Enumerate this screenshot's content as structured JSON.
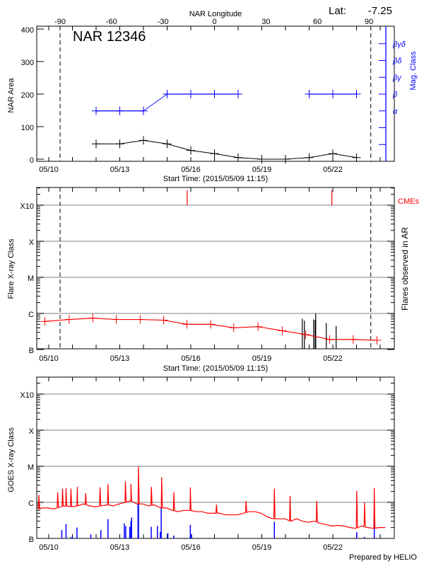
{
  "chart_data": [
    {
      "type": "line",
      "title": "NAR 12346",
      "latitude_label": "Lat:",
      "latitude_value": "-7.25",
      "top_axis_label": "NAR Longitude",
      "top_ticks": [
        "-90",
        "-60",
        "-30",
        "0",
        "30",
        "60",
        "90"
      ],
      "top_tick_values": [
        -90,
        -60,
        -30,
        0,
        30,
        60,
        90
      ],
      "limb_dates": [
        "2015-05-10T11:30",
        "2015-05-23T14:30"
      ],
      "xlabel": "Start Time: (2015/05/09 11:15)",
      "x_ticks": [
        "05/10",
        "05/13",
        "05/16",
        "05/19",
        "05/22"
      ],
      "xlim": [
        "2015-05-09T11:15",
        "2015-05-24T02:00"
      ],
      "ylabel": "NAR Area",
      "ylim": [
        0,
        400
      ],
      "y_ticks": [
        "0",
        "100",
        "200",
        "300",
        "400"
      ],
      "y2label": "Mag. Class",
      "y2_ticks": [
        "α",
        "β",
        "βγ",
        "βδ",
        "βγδ"
      ],
      "colors": {
        "area": "#000000",
        "mag_class": "#0000ff"
      },
      "area_series": {
        "dates": [
          "2015-05-12",
          "2015-05-13",
          "2015-05-14",
          "2015-05-15",
          "2015-05-16",
          "2015-05-17",
          "2015-05-18",
          "2015-05-19",
          "2015-05-20",
          "2015-05-21",
          "2015-05-22",
          "2015-05-23"
        ],
        "values": [
          47,
          47,
          58,
          47,
          27,
          17,
          5,
          0,
          0,
          5,
          17,
          5
        ]
      },
      "mag_class_series": {
        "dates": [
          "2015-05-12",
          "2015-05-13",
          "2015-05-14",
          "2015-05-15",
          "2015-05-16",
          "2015-05-17",
          "2015-05-18",
          "2015-05-21",
          "2015-05-22",
          "2015-05-23"
        ],
        "values": [
          "α",
          "α",
          "α",
          "β",
          "β",
          "β",
          "β",
          "β",
          "β",
          "β"
        ]
      }
    },
    {
      "type": "line",
      "xlabel": "Start Time: (2015/05/09 11:15)",
      "x_ticks": [
        "05/10",
        "05/13",
        "05/16",
        "05/19",
        "05/22"
      ],
      "ylabel": "Flare X-ray Class",
      "y2label": "Flares observed in AR",
      "cme_label": "CMEs",
      "y_ticks": [
        "B",
        "C",
        "M",
        "X",
        "X10"
      ],
      "y_scale": "log",
      "ylim_flux": [
        1e-07,
        0.0032
      ],
      "colors": {
        "background_flux": "#ff0000",
        "flares": "#000000",
        "cmes": "#ff0000",
        "grid": "#999999"
      },
      "background_flux": {
        "dates": [
          "2015-05-09T20:00",
          "2015-05-10T20:40",
          "2015-05-11T20:40",
          "2015-05-12T20:30",
          "2015-05-13T20:40",
          "2015-05-14T20:30",
          "2015-05-15T20:00",
          "2015-05-16T20:10",
          "2015-05-17T19:30",
          "2015-05-18T20:10",
          "2015-05-19T20:50",
          "2015-05-20T20:25",
          "2015-05-21T20:40",
          "2015-05-22T20:40",
          "2015-05-23T20:40"
        ],
        "flux": [
          6e-07,
          6.8e-07,
          7.4e-07,
          6.8e-07,
          6.8e-07,
          6.5e-07,
          5e-07,
          5e-07,
          4e-07,
          4.3e-07,
          3.3e-07,
          2.6e-07,
          1.9e-07,
          1.9e-07,
          1.8e-07
        ]
      },
      "flares": {
        "dates": [
          "2015-05-20T17:00",
          "2015-05-20T19:10",
          "2015-05-21T04:30",
          "2015-05-21T06:00",
          "2015-05-21T06:40",
          "2015-05-21T17:20",
          "2015-05-22T03:20"
        ],
        "flux": [
          7.1e-07,
          6.3e-07,
          6.8e-07,
          6.5e-07,
          1e-06,
          5.4e-07,
          4.5e-07
        ]
      },
      "cmes": {
        "dates": [
          "2015-05-15T20:20",
          "2015-05-21T23:00"
        ]
      },
      "limb_dates": [
        "2015-05-10T11:30",
        "2015-05-23T14:30"
      ]
    },
    {
      "type": "line",
      "xlabel": "",
      "x_ticks": [
        "05/10",
        "05/13",
        "05/16",
        "05/19",
        "05/22"
      ],
      "ylabel": "GOES X-ray Class",
      "y_ticks": [
        "B",
        "C",
        "M",
        "X",
        "X10"
      ],
      "y_scale": "log",
      "footer": "Prepared by HELIO",
      "colors": {
        "goes_flux": "#ff0000",
        "events": "#0000ff",
        "grid": "#999999"
      },
      "goes_flux": {
        "start": "2015-05-09T11:15",
        "step_hours": 6,
        "flux": [
          6e-07,
          7e-07,
          7e-07,
          6.5e-07,
          7.5e-07,
          8e-07,
          7.5e-07,
          8e-07,
          9e-07,
          8e-07,
          7.5e-07,
          8e-07,
          8.5e-07,
          8e-07,
          9e-07,
          1e-06,
          1.1e-06,
          9e-07,
          9e-07,
          8e-07,
          8.5e-07,
          7e-07,
          7e-07,
          6e-07,
          5.5e-07,
          6e-07,
          6e-07,
          5.5e-07,
          5.5e-07,
          5e-07,
          5e-07,
          5e-07,
          4.5e-07,
          4.5e-07,
          4.5e-07,
          5e-07,
          5.5e-07,
          5.5e-07,
          5e-07,
          4e-07,
          3.5e-07,
          3.5e-07,
          3.5e-07,
          3e-07,
          3.5e-07,
          3e-07,
          2.8e-07,
          3e-07,
          2.6e-07,
          2.4e-07,
          2.2e-07,
          2.3e-07,
          2.2e-07,
          2e-07,
          1.9e-07,
          2.2e-07,
          2e-07,
          1.9e-07,
          2e-07,
          2e-07
        ]
      },
      "goes_peaks": {
        "dates": [
          "2015-05-09T14:00",
          "2015-05-10T09:00",
          "2015-05-10T14:00",
          "2015-05-10T17:30",
          "2015-05-10T22:30",
          "2015-05-11T05:00",
          "2015-05-11T13:30",
          "2015-05-12T04:00",
          "2015-05-12T12:00",
          "2015-05-13T05:45",
          "2015-05-13T11:20",
          "2015-05-13T19:00",
          "2015-05-14T08:00",
          "2015-05-14T18:30",
          "2015-05-15T06:50",
          "2015-05-15T23:30",
          "2015-05-17T02:00",
          "2015-05-18T08:00",
          "2015-05-19T12:40",
          "2015-05-20T04:40",
          "2015-05-21T07:40",
          "2015-05-23T00:15",
          "2015-05-23T08:10",
          "2015-05-23T18:00"
        ],
        "flux": [
          1.6e-06,
          1.9e-06,
          2.4e-06,
          2.5e-06,
          2.4e-06,
          2.7e-06,
          1.8e-06,
          2.6e-06,
          3.2e-06,
          3.8e-06,
          3.3e-06,
          9.9e-06,
          2.7e-06,
          5e-06,
          1.9e-06,
          2.6e-06,
          8.7e-07,
          1.1e-06,
          2.4e-06,
          1.5e-06,
          1.1e-06,
          2.1e-06,
          1e-06,
          2.5e-06
        ]
      },
      "events": {
        "dates": [
          "2015-05-10T13:12",
          "2015-05-10T17:31",
          "2015-05-10T22:34",
          "2015-05-11T00:14",
          "2015-05-11T04:34",
          "2015-05-11T18:43",
          "2015-05-12T04:48",
          "2015-05-12T12:00",
          "2015-05-13T04:34",
          "2015-05-13T06:00",
          "2015-05-13T10:05",
          "2015-05-13T11:17",
          "2015-05-13T12:00",
          "2015-05-13T18:29",
          "2015-05-13T18:58",
          "2015-05-14T07:55",
          "2015-05-14T14:10",
          "2015-05-14T17:02",
          "2015-05-14T18:00",
          "2015-05-15T00:43",
          "2015-05-15T06:43",
          "2015-05-15T23:31",
          "2015-05-16T00:43",
          "2015-05-19T12:43",
          "2015-05-20T09:22",
          "2015-05-23T00:14",
          "2015-05-23T08:10",
          "2015-05-23T18:00"
        ],
        "flux": [
          1.7e-07,
          2.5e-07,
          1.1e-07,
          1.1e-07,
          2e-07,
          1.3e-07,
          1.7e-07,
          3.4e-07,
          2.6e-07,
          2.2e-07,
          2.1e-07,
          3e-07,
          3.8e-07,
          9.4e-07,
          9.4e-07,
          2.1e-07,
          2.2e-07,
          1.5e-07,
          7e-07,
          1.4e-07,
          1.2e-07,
          2.4e-07,
          1.3e-07,
          2.9e-07,
          1e-07,
          1.5e-07,
          1.1e-07,
          4.6e-07
        ]
      }
    }
  ]
}
